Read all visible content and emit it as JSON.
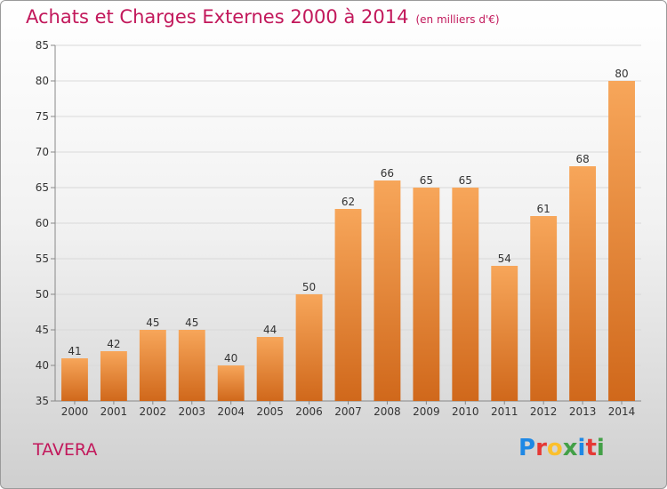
{
  "header": {
    "title": "Achats et Charges Externes 2000 à 2014",
    "subtitle": "(en milliers d'€)"
  },
  "footer": {
    "commune": "TAVERA",
    "logo_letters": [
      "P",
      "r",
      "o",
      "x",
      "i",
      "t",
      "i"
    ],
    "logo_colors": [
      "#1e88e5",
      "#e53935",
      "#fbc02d",
      "#43a047",
      "#1e88e5",
      "#e53935",
      "#43a047"
    ]
  },
  "chart_data": {
    "type": "bar",
    "categories": [
      "2000",
      "2001",
      "2002",
      "2003",
      "2004",
      "2005",
      "2006",
      "2007",
      "2008",
      "2009",
      "2010",
      "2011",
      "2012",
      "2013",
      "2014"
    ],
    "values": [
      41,
      42,
      45,
      45,
      40,
      44,
      50,
      62,
      66,
      65,
      65,
      54,
      61,
      68,
      80
    ],
    "title": "Achats et Charges Externes 2000 à 2014",
    "ylim": [
      35,
      85
    ],
    "yticks": [
      35,
      40,
      45,
      50,
      55,
      60,
      65,
      70,
      75,
      80,
      85
    ],
    "grid": true,
    "bar_color_top": "#f7a65a",
    "bar_color_bottom": "#d0681b"
  }
}
